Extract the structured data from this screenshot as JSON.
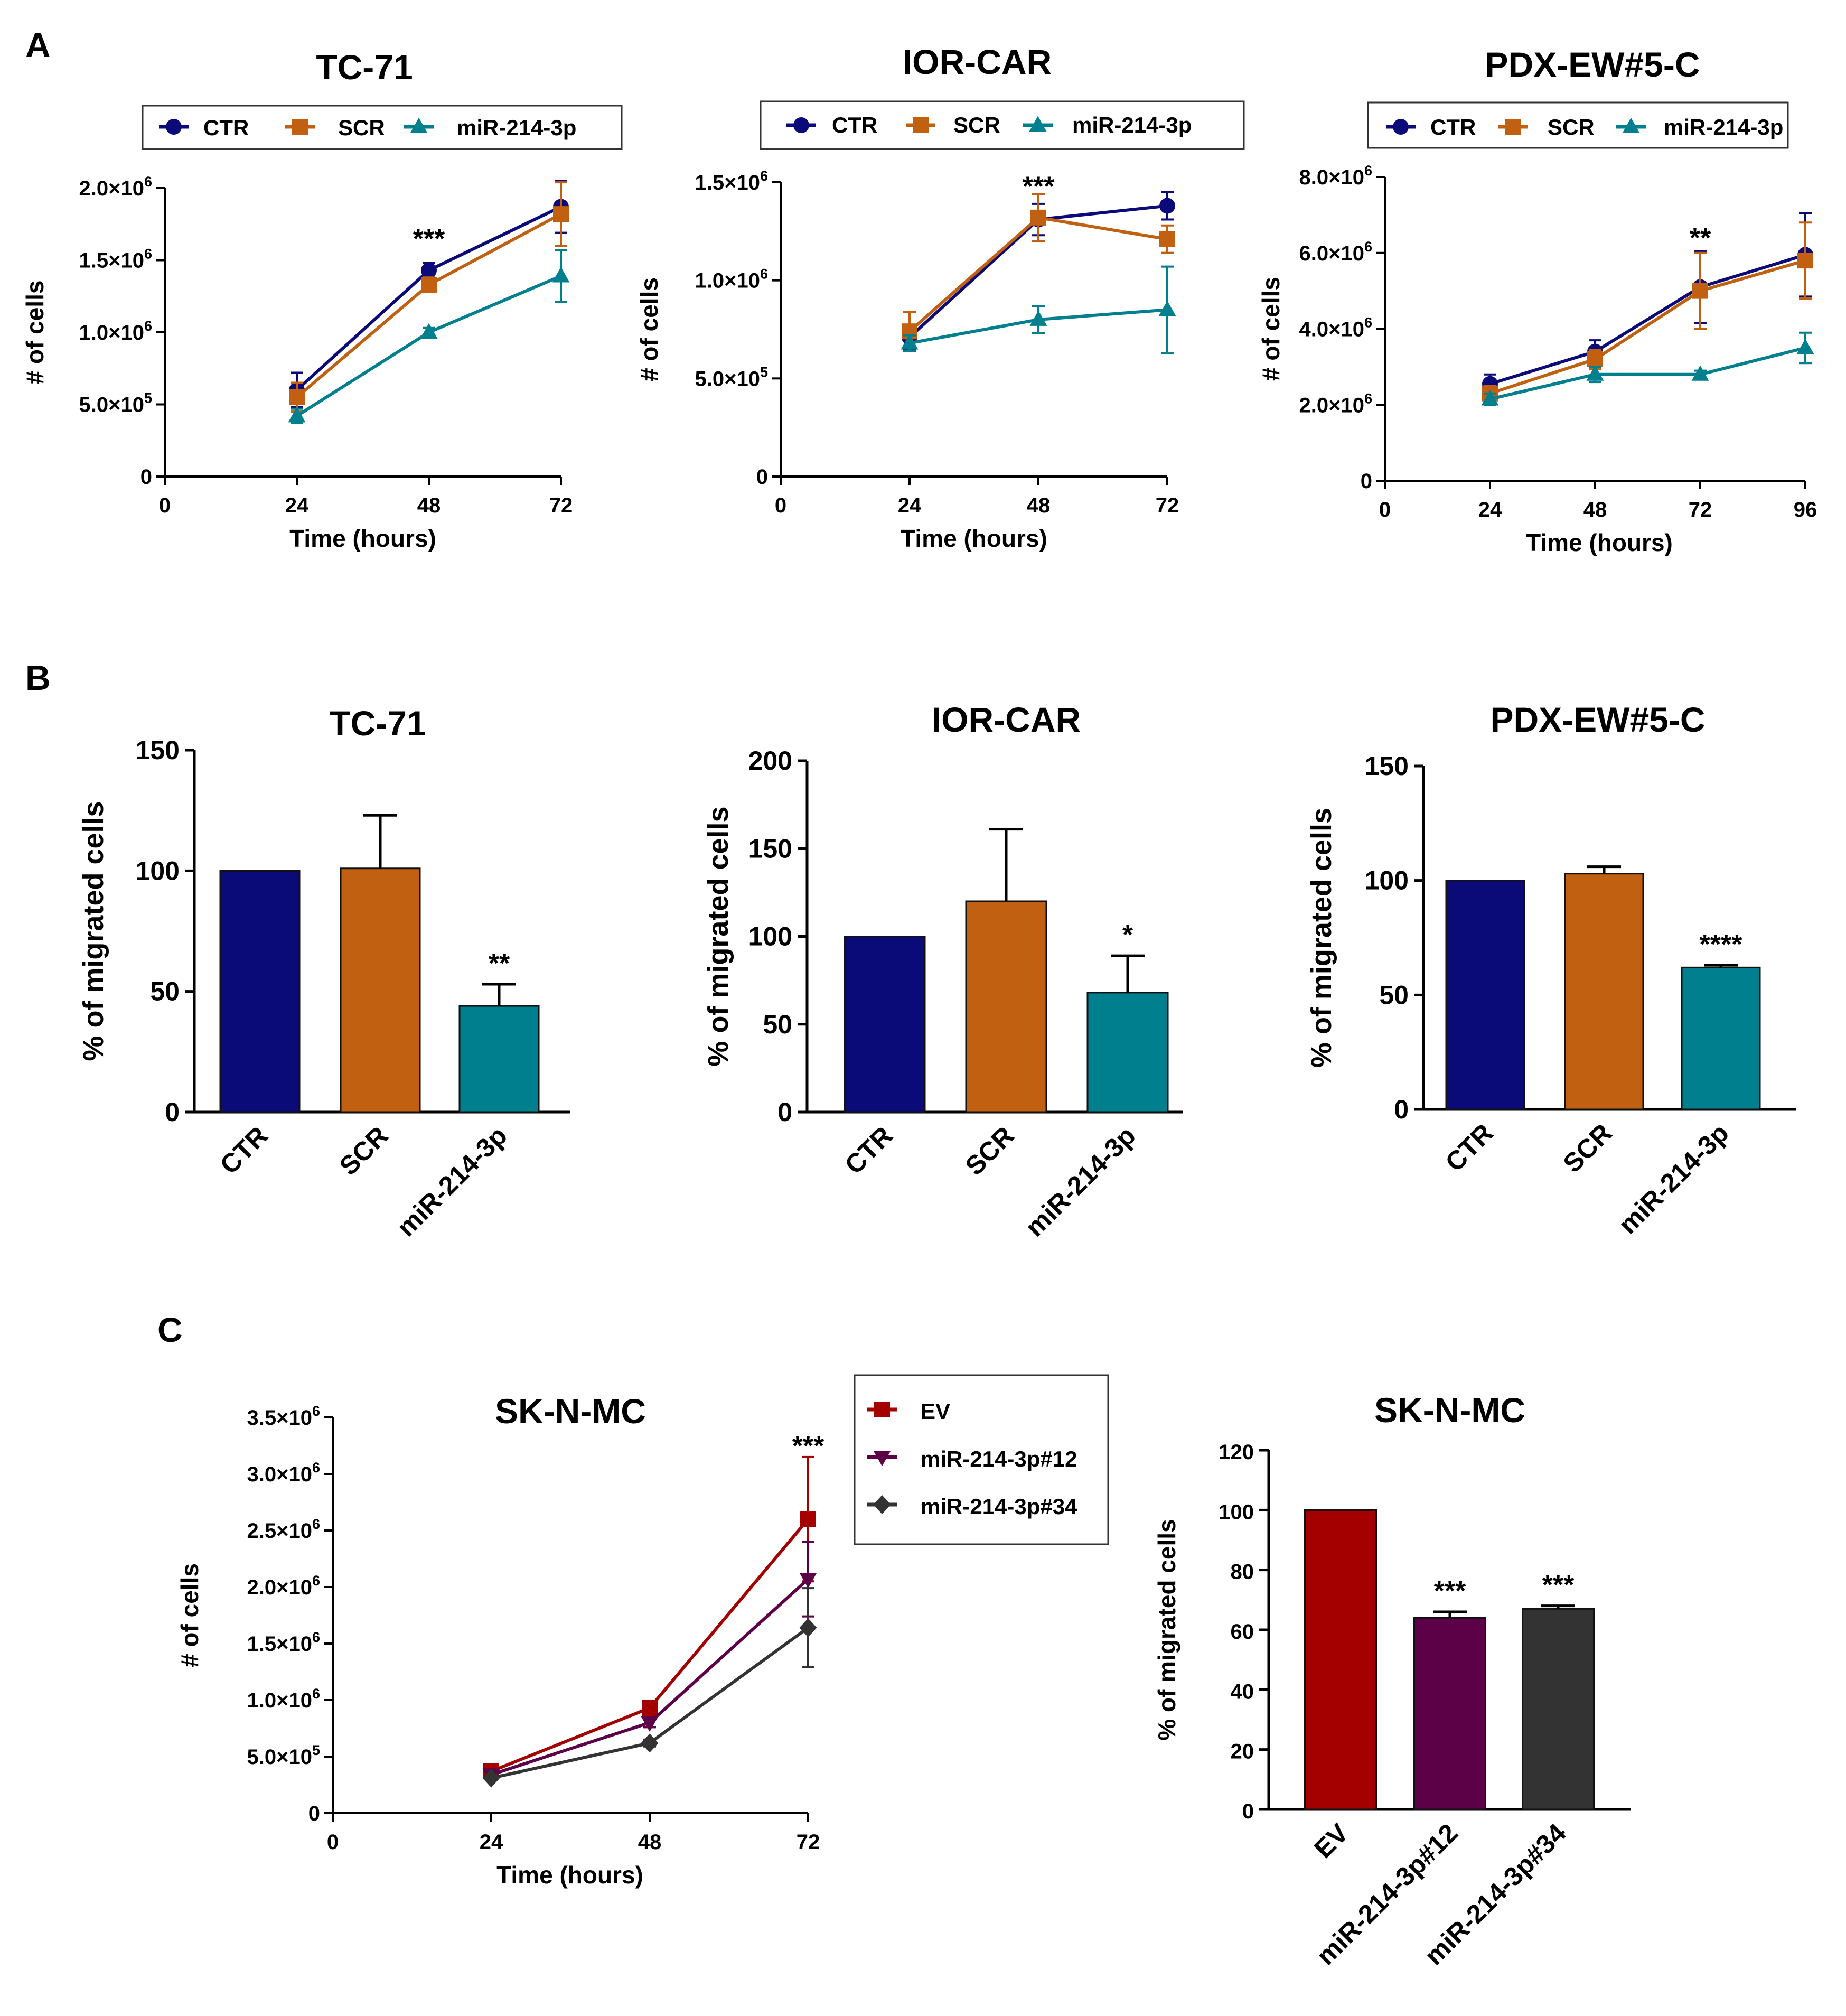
{
  "panels": {
    "A": "A",
    "B": "B",
    "C": "C"
  },
  "colors": {
    "CTR": "#0a0a78",
    "SCR": "#c06010",
    "MIR": "#00808f",
    "EV": "#a40000",
    "M12": "#5c0048",
    "M34": "#333333"
  },
  "chart_data": [
    {
      "id": "a1",
      "type": "line",
      "title": "TC-71",
      "xlabel": "Time (hours)",
      "ylabel": "# of cells",
      "x": [
        24,
        48,
        72
      ],
      "xticks": [
        0,
        24,
        48,
        72
      ],
      "xlim": [
        0,
        72
      ],
      "ylim": [
        0,
        2000000
      ],
      "yticks": [
        {
          "v": 0,
          "m": "0",
          "e": ""
        },
        {
          "v": 500000,
          "m": "5.0×10",
          "e": "5"
        },
        {
          "v": 1000000,
          "m": "1.0×10",
          "e": "6"
        },
        {
          "v": 1500000,
          "m": "1.5×10",
          "e": "6"
        },
        {
          "v": 2000000,
          "m": "2.0×10",
          "e": "6"
        }
      ],
      "series": [
        {
          "name": "CTR",
          "color": "#0a0a78",
          "marker": "circle",
          "values": [
            600000,
            1430000,
            1870000
          ],
          "errors": [
            120000,
            50000,
            180000
          ]
        },
        {
          "name": "SCR",
          "color": "#c06010",
          "marker": "square",
          "values": [
            550000,
            1330000,
            1820000
          ],
          "errors": [
            100000,
            50000,
            220000
          ]
        },
        {
          "name": "miR-214-3p",
          "color": "#00808f",
          "marker": "triangle",
          "values": [
            420000,
            1000000,
            1390000
          ],
          "errors": [
            50000,
            30000,
            180000
          ]
        }
      ],
      "annotations": [
        {
          "x": 48,
          "y": 1650000,
          "text": "***"
        }
      ]
    },
    {
      "id": "a2",
      "type": "line",
      "title": "IOR-CAR",
      "xlabel": "Time (hours)",
      "ylabel": "# of cells",
      "x": [
        24,
        48,
        72
      ],
      "xticks": [
        0,
        24,
        48,
        72
      ],
      "xlim": [
        0,
        72
      ],
      "ylim": [
        0,
        1500000
      ],
      "yticks": [
        {
          "v": 0,
          "m": "0",
          "e": ""
        },
        {
          "v": 500000,
          "m": "5.0×10",
          "e": "5"
        },
        {
          "v": 1000000,
          "m": "1.0×10",
          "e": "6"
        },
        {
          "v": 1500000,
          "m": "1.5×10",
          "e": "6"
        }
      ],
      "series": [
        {
          "name": "CTR",
          "color": "#0a0a78",
          "marker": "circle",
          "values": [
            710000,
            1310000,
            1380000
          ],
          "errors": [
            60000,
            80000,
            70000
          ]
        },
        {
          "name": "SCR",
          "color": "#c06010",
          "marker": "square",
          "values": [
            740000,
            1320000,
            1210000
          ],
          "errors": [
            100000,
            120000,
            70000
          ]
        },
        {
          "name": "miR-214-3p",
          "color": "#00808f",
          "marker": "triangle",
          "values": [
            680000,
            800000,
            850000
          ],
          "errors": [
            40000,
            70000,
            220000
          ]
        }
      ],
      "annotations": [
        {
          "x": 48,
          "y": 1480000,
          "text": "***"
        }
      ]
    },
    {
      "id": "a3",
      "type": "line",
      "title": "PDX-EW#5-C",
      "xlabel": "Time (hours)",
      "ylabel": "# of cells",
      "x": [
        24,
        48,
        72,
        96
      ],
      "xticks": [
        0,
        24,
        48,
        72,
        96
      ],
      "xlim": [
        0,
        96
      ],
      "ylim": [
        0,
        8000000
      ],
      "yticks": [
        {
          "v": 0,
          "m": "0",
          "e": ""
        },
        {
          "v": 2000000,
          "m": "2.0×10",
          "e": "6"
        },
        {
          "v": 4000000,
          "m": "4.0×10",
          "e": "6"
        },
        {
          "v": 6000000,
          "m": "6.0×10",
          "e": "6"
        },
        {
          "v": 8000000,
          "m": "8.0×10",
          "e": "6"
        }
      ],
      "series": [
        {
          "name": "CTR",
          "color": "#0a0a78",
          "marker": "circle",
          "values": [
            2550000,
            3400000,
            5100000,
            5950000
          ],
          "errors": [
            250000,
            300000,
            950000,
            1100000
          ]
        },
        {
          "name": "SCR",
          "color": "#c06010",
          "marker": "square",
          "values": [
            2300000,
            3200000,
            5000000,
            5800000
          ],
          "errors": [
            200000,
            250000,
            1000000,
            1000000
          ]
        },
        {
          "name": "miR-214-3p",
          "color": "#00808f",
          "marker": "triangle",
          "values": [
            2150000,
            2800000,
            2800000,
            3500000
          ],
          "errors": [
            150000,
            200000,
            100000,
            400000
          ]
        }
      ],
      "annotations": [
        {
          "x": 72,
          "y": 6400000,
          "text": "**"
        }
      ]
    },
    {
      "id": "b1",
      "type": "bar",
      "title": "TC-71",
      "ylabel": "% of migrated cells",
      "categories": [
        "CTR",
        "SCR",
        "miR-214-3p"
      ],
      "values": [
        100,
        101,
        44
      ],
      "errors": [
        0,
        22,
        9
      ],
      "colors": [
        "#0a0a78",
        "#c06010",
        "#00808f"
      ],
      "ylim": [
        0,
        150
      ],
      "yticks": [
        0,
        50,
        100,
        150
      ],
      "annotations": [
        {
          "index": 2,
          "text": "**"
        }
      ]
    },
    {
      "id": "b2",
      "type": "bar",
      "title": "IOR-CAR",
      "ylabel": "% of migrated cells",
      "categories": [
        "CTR",
        "SCR",
        "miR-214-3p"
      ],
      "values": [
        100,
        120,
        68
      ],
      "errors": [
        0,
        41,
        21
      ],
      "colors": [
        "#0a0a78",
        "#c06010",
        "#00808f"
      ],
      "ylim": [
        0,
        200
      ],
      "yticks": [
        0,
        50,
        100,
        150,
        200
      ],
      "annotations": [
        {
          "index": 2,
          "text": "*"
        }
      ]
    },
    {
      "id": "b3",
      "type": "bar",
      "title": "PDX-EW#5-C",
      "ylabel": "% of migrated cells",
      "categories": [
        "CTR",
        "SCR",
        "miR-214-3p"
      ],
      "values": [
        100,
        103,
        62
      ],
      "errors": [
        0,
        3,
        1
      ],
      "colors": [
        "#0a0a78",
        "#c06010",
        "#00808f"
      ],
      "ylim": [
        0,
        150
      ],
      "yticks": [
        0,
        50,
        100,
        150
      ],
      "annotations": [
        {
          "index": 2,
          "text": "****"
        }
      ]
    },
    {
      "id": "c1",
      "type": "line",
      "title": "SK-N-MC",
      "xlabel": "Time (hours)",
      "ylabel": "# of cells",
      "x": [
        24,
        48,
        72
      ],
      "xticks": [
        0,
        24,
        48,
        72
      ],
      "xlim": [
        0,
        72
      ],
      "ylim": [
        0,
        3500000
      ],
      "yticks": [
        {
          "v": 0,
          "m": "0",
          "e": ""
        },
        {
          "v": 500000,
          "m": "5.0×10",
          "e": "5"
        },
        {
          "v": 1000000,
          "m": "1.0×10",
          "e": "6"
        },
        {
          "v": 1500000,
          "m": "1.5×10",
          "e": "6"
        },
        {
          "v": 2000000,
          "m": "2.0×10",
          "e": "6"
        },
        {
          "v": 2500000,
          "m": "2.5×10",
          "e": "6"
        },
        {
          "v": 3000000,
          "m": "3.0×10",
          "e": "6"
        },
        {
          "v": 3500000,
          "m": "3.5×10",
          "e": "6"
        }
      ],
      "series": [
        {
          "name": "EV",
          "color": "#a40000",
          "marker": "square",
          "values": [
            370000,
            930000,
            2600000
          ],
          "errors": [
            30000,
            50000,
            550000
          ]
        },
        {
          "name": "miR-214-3p#12",
          "color": "#5c0048",
          "marker": "tridown",
          "values": [
            340000,
            800000,
            2070000
          ],
          "errors": [
            30000,
            40000,
            330000
          ]
        },
        {
          "name": "miR-214-3p#34",
          "color": "#333333",
          "marker": "diamond",
          "values": [
            310000,
            620000,
            1640000
          ],
          "errors": [
            20000,
            30000,
            350000
          ]
        }
      ],
      "annotations": [
        {
          "x": 72,
          "y": 3250000,
          "text": "***"
        }
      ]
    },
    {
      "id": "c2",
      "type": "bar",
      "title": "SK-N-MC",
      "ylabel": "% of migrated cells",
      "categories": [
        "EV",
        "miR-214-3p#12",
        "miR-214-3p#34"
      ],
      "values": [
        100,
        64,
        67
      ],
      "errors": [
        0,
        2,
        1
      ],
      "colors": [
        "#a40000",
        "#5c0048",
        "#333333"
      ],
      "ylim": [
        0,
        120
      ],
      "yticks": [
        0,
        20,
        40,
        60,
        80,
        100,
        120
      ],
      "annotations": [
        {
          "index": 1,
          "text": "***"
        },
        {
          "index": 2,
          "text": "***"
        }
      ]
    }
  ]
}
